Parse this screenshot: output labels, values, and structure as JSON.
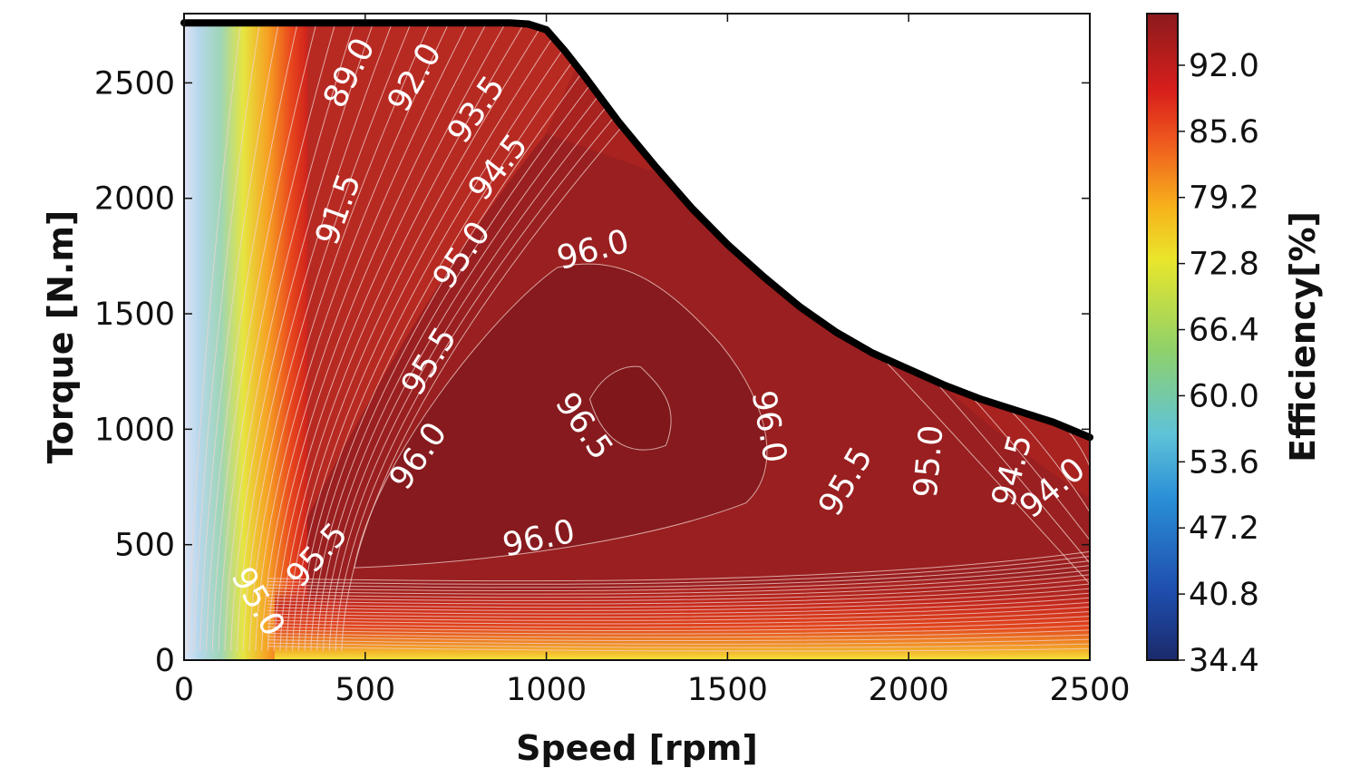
{
  "chart_data": {
    "type": "contour",
    "title": "",
    "xlabel": "Speed [rpm]",
    "ylabel": "Torque [N.m]",
    "xlim": [
      0,
      2500
    ],
    "ylim": [
      0,
      2800
    ],
    "xticks": [
      0,
      500,
      1000,
      1500,
      2000,
      2500
    ],
    "xtick_labels": [
      "0",
      "500",
      "1000",
      "1500",
      "2000",
      "2500"
    ],
    "yticks": [
      0,
      500,
      1000,
      1500,
      2000,
      2500
    ],
    "ytick_labels": [
      "0",
      "500",
      "1000",
      "1500",
      "2000",
      "2500"
    ],
    "colorbar": {
      "label": "Efficiency[%]",
      "min": 34.4,
      "max": 97.0,
      "ticks": [
        34.4,
        40.8,
        47.2,
        53.6,
        60.0,
        66.4,
        72.8,
        79.2,
        85.6,
        92.0
      ],
      "tick_labels": [
        "34.4",
        "40.8",
        "47.2",
        "53.6",
        "60.0",
        "66.4",
        "72.8",
        "79.2",
        "85.6",
        "92.0"
      ],
      "colormap": [
        "#1b2a6b",
        "#1f4fb0",
        "#2a8fd6",
        "#5fc3d8",
        "#8fd16a",
        "#e9e62a",
        "#f7b21c",
        "#ef5a1e",
        "#d81f1b",
        "#8c1a1d"
      ]
    },
    "max_torque_envelope": {
      "speed": [
        0,
        900,
        950,
        1000,
        1050,
        1100,
        1200,
        1300,
        1400,
        1500,
        1600,
        1700,
        1800,
        1900,
        2000,
        2100,
        2200,
        2300,
        2400,
        2500
      ],
      "torque": [
        2760,
        2760,
        2755,
        2730,
        2640,
        2540,
        2330,
        2140,
        1960,
        1800,
        1660,
        1530,
        1420,
        1330,
        1260,
        1190,
        1130,
        1080,
        1030,
        965
      ]
    },
    "contour_labels": [
      {
        "text": "89.0",
        "speed": 460,
        "torque": 2540,
        "angle": -63
      },
      {
        "text": "92.0",
        "speed": 640,
        "torque": 2520,
        "angle": -60
      },
      {
        "text": "93.5",
        "speed": 810,
        "torque": 2380,
        "angle": -55
      },
      {
        "text": "94.5",
        "speed": 870,
        "torque": 2130,
        "angle": -52
      },
      {
        "text": "91.5",
        "speed": 430,
        "torque": 1950,
        "angle": -70
      },
      {
        "text": "95.0",
        "speed": 770,
        "torque": 1750,
        "angle": -55
      },
      {
        "text": "96.0",
        "speed": 1130,
        "torque": 1770,
        "angle": -15
      },
      {
        "text": "95.5",
        "speed": 680,
        "torque": 1290,
        "angle": -58
      },
      {
        "text": "96.5",
        "speed": 1100,
        "torque": 1010,
        "angle": 55
      },
      {
        "text": "96.0",
        "speed": 1610,
        "torque": 1010,
        "angle": 80
      },
      {
        "text": "96.0",
        "speed": 650,
        "torque": 880,
        "angle": -55
      },
      {
        "text": "95.5",
        "speed": 1830,
        "torque": 770,
        "angle": -60
      },
      {
        "text": "95.0",
        "speed": 2060,
        "torque": 860,
        "angle": -85
      },
      {
        "text": "94.5",
        "speed": 2290,
        "torque": 820,
        "angle": -75
      },
      {
        "text": "94.0",
        "speed": 2400,
        "torque": 740,
        "angle": -40
      },
      {
        "text": "96.0",
        "speed": 980,
        "torque": 520,
        "angle": -12
      },
      {
        "text": "95.5",
        "speed": 370,
        "torque": 450,
        "angle": -48
      },
      {
        "text": "95.0",
        "speed": 200,
        "torque": 250,
        "angle": 60
      }
    ],
    "efficiency_regions": [
      {
        "level": 96.5,
        "description": "peak island near 1150-1350 rpm, 900-1300 N.m"
      },
      {
        "level": 96.0,
        "description": "large central plateau"
      },
      {
        "level": 34.4,
        "description": "lowest efficiency near zero speed"
      }
    ]
  }
}
